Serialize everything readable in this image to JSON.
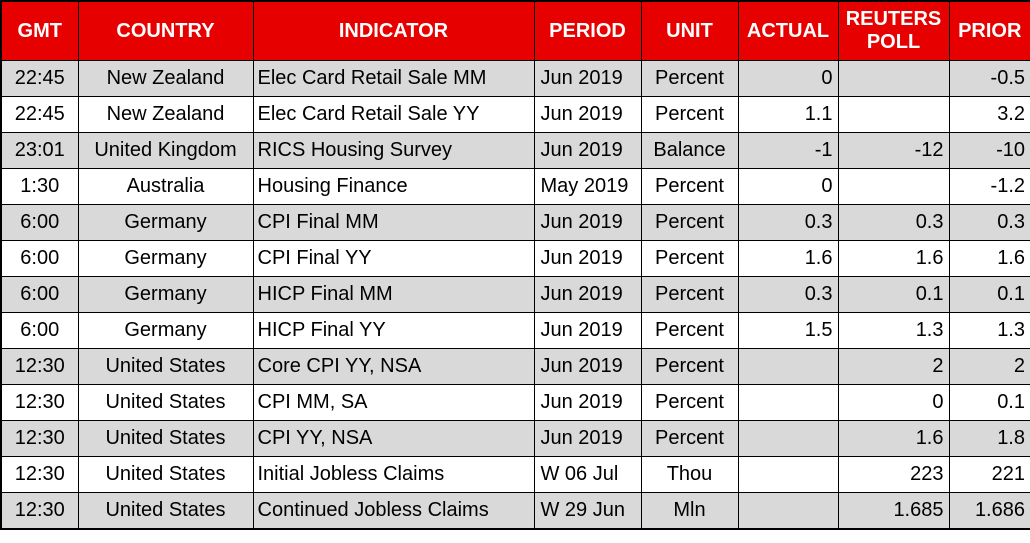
{
  "colors": {
    "header_bg": "#E60000",
    "header_text": "#FFFFFF",
    "row_alt_bg": "#D9D9D9",
    "row_bg": "#FFFFFF",
    "border": "#000000",
    "cell_text": "#000000"
  },
  "table": {
    "columns": [
      {
        "key": "gmt",
        "label": "GMT"
      },
      {
        "key": "country",
        "label": "COUNTRY"
      },
      {
        "key": "indicator",
        "label": "INDICATOR"
      },
      {
        "key": "period",
        "label": "PERIOD"
      },
      {
        "key": "unit",
        "label": "UNIT"
      },
      {
        "key": "actual",
        "label": "ACTUAL"
      },
      {
        "key": "reuters-poll",
        "label": "REUTERS POLL"
      },
      {
        "key": "prior",
        "label": "PRIOR"
      }
    ],
    "rows": [
      [
        "22:45",
        "New Zealand",
        "Elec Card Retail Sale MM",
        "Jun 2019",
        "Percent",
        "0",
        "",
        "-0.5"
      ],
      [
        "22:45",
        "New Zealand",
        "Elec Card Retail Sale YY",
        "Jun 2019",
        "Percent",
        "1.1",
        "",
        "3.2"
      ],
      [
        "23:01",
        "United Kingdom",
        "RICS Housing Survey",
        "Jun 2019",
        "Balance",
        "-1",
        "-12",
        "-10"
      ],
      [
        "1:30",
        "Australia",
        "Housing Finance",
        "May 2019",
        "Percent",
        "0",
        "",
        "-1.2"
      ],
      [
        "6:00",
        "Germany",
        "CPI Final MM",
        "Jun 2019",
        "Percent",
        "0.3",
        "0.3",
        "0.3"
      ],
      [
        "6:00",
        "Germany",
        "CPI Final YY",
        "Jun 2019",
        "Percent",
        "1.6",
        "1.6",
        "1.6"
      ],
      [
        "6:00",
        "Germany",
        "HICP Final MM",
        "Jun 2019",
        "Percent",
        "0.3",
        "0.1",
        "0.1"
      ],
      [
        "6:00",
        "Germany",
        "HICP Final YY",
        "Jun 2019",
        "Percent",
        "1.5",
        "1.3",
        "1.3"
      ],
      [
        "12:30",
        "United States",
        "Core CPI YY, NSA",
        "Jun 2019",
        "Percent",
        "",
        "2",
        "2"
      ],
      [
        "12:30",
        "United States",
        "CPI MM, SA",
        "Jun 2019",
        "Percent",
        "",
        "0",
        "0.1"
      ],
      [
        "12:30",
        "United States",
        "CPI YY, NSA",
        "Jun 2019",
        "Percent",
        "",
        "1.6",
        "1.8"
      ],
      [
        "12:30",
        "United States",
        "Initial Jobless Claims",
        "W 06 Jul",
        "Thou",
        "",
        "223",
        "221"
      ],
      [
        "12:30",
        "United States",
        "Continued Jobless Claims",
        "W 29 Jun",
        "Mln",
        "",
        "1.685",
        "1.686"
      ]
    ]
  },
  "chart_data": {
    "type": "table",
    "columns": [
      "GMT",
      "COUNTRY",
      "INDICATOR",
      "PERIOD",
      "UNIT",
      "ACTUAL",
      "REUTERS POLL",
      "PRIOR"
    ],
    "rows": [
      [
        "22:45",
        "New Zealand",
        "Elec Card Retail Sale MM",
        "Jun 2019",
        "Percent",
        "0",
        "",
        "-0.5"
      ],
      [
        "22:45",
        "New Zealand",
        "Elec Card Retail Sale YY",
        "Jun 2019",
        "Percent",
        "1.1",
        "",
        "3.2"
      ],
      [
        "23:01",
        "United Kingdom",
        "RICS Housing Survey",
        "Jun 2019",
        "Balance",
        "-1",
        "-12",
        "-10"
      ],
      [
        "1:30",
        "Australia",
        "Housing Finance",
        "May 2019",
        "Percent",
        "0",
        "",
        "-1.2"
      ],
      [
        "6:00",
        "Germany",
        "CPI Final MM",
        "Jun 2019",
        "Percent",
        "0.3",
        "0.3",
        "0.3"
      ],
      [
        "6:00",
        "Germany",
        "CPI Final YY",
        "Jun 2019",
        "Percent",
        "1.6",
        "1.6",
        "1.6"
      ],
      [
        "6:00",
        "Germany",
        "HICP Final MM",
        "Jun 2019",
        "Percent",
        "0.3",
        "0.1",
        "0.1"
      ],
      [
        "6:00",
        "Germany",
        "HICP Final YY",
        "Jun 2019",
        "Percent",
        "1.5",
        "1.3",
        "1.3"
      ],
      [
        "12:30",
        "United States",
        "Core CPI YY, NSA",
        "Jun 2019",
        "Percent",
        "",
        "2",
        "2"
      ],
      [
        "12:30",
        "United States",
        "CPI MM, SA",
        "Jun 2019",
        "Percent",
        "",
        "0",
        "0.1"
      ],
      [
        "12:30",
        "United States",
        "CPI YY, NSA",
        "Jun 2019",
        "Percent",
        "",
        "1.6",
        "1.8"
      ],
      [
        "12:30",
        "United States",
        "Initial Jobless Claims",
        "W 06 Jul",
        "Thou",
        "",
        "223",
        "221"
      ],
      [
        "12:30",
        "United States",
        "Continued Jobless Claims",
        "W 29 Jun",
        "Mln",
        "",
        "1.685",
        "1.686"
      ]
    ]
  }
}
